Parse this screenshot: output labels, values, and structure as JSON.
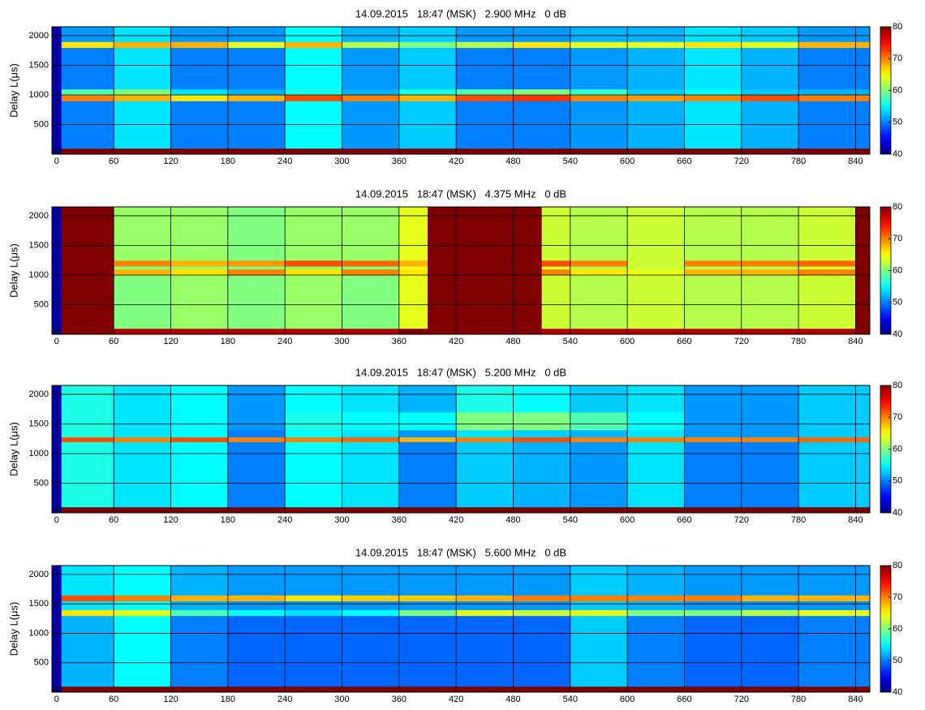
{
  "chart_data": [
    {
      "type": "heatmap",
      "title": "14.09.2015   18:47 (MSK)   2.900 MHz   0 dB",
      "ylabel": "Delay L(μs)",
      "colormap": "jet",
      "grid": true,
      "xlim": [
        -5,
        855
      ],
      "ylim": [
        0,
        2150
      ],
      "xticks": [
        0,
        60,
        120,
        180,
        240,
        300,
        360,
        420,
        480,
        540,
        600,
        660,
        720,
        780,
        840
      ],
      "yticks": [
        500,
        1000,
        1500,
        2000
      ],
      "clim": [
        40,
        80
      ],
      "cticks": [
        40,
        50,
        60,
        70,
        80
      ],
      "x_edges": [
        -5,
        5,
        60,
        120,
        180,
        240,
        300,
        360,
        420,
        480,
        540,
        600,
        660,
        720,
        780,
        855
      ],
      "y_edges": [
        0,
        100,
        900,
        1000,
        1100,
        1800,
        1900,
        2150
      ],
      "z": [
        [
          40,
          80,
          80,
          80,
          80,
          80,
          80,
          80,
          80,
          80,
          80,
          80,
          80,
          80,
          80
        ],
        [
          42,
          50,
          54,
          50,
          50,
          55,
          51,
          53,
          50,
          50,
          51,
          52,
          54,
          52,
          50
        ],
        [
          42,
          70,
          68,
          66,
          68,
          72,
          70,
          68,
          72,
          73,
          70,
          69,
          70,
          72,
          70
        ],
        [
          42,
          58,
          60,
          54,
          52,
          56,
          52,
          56,
          58,
          60,
          57,
          53,
          55,
          53,
          52
        ],
        [
          42,
          50,
          54,
          50,
          50,
          55,
          51,
          53,
          50,
          50,
          51,
          52,
          54,
          52,
          50
        ],
        [
          42,
          66,
          68,
          68,
          64,
          68,
          62,
          60,
          62,
          66,
          64,
          64,
          66,
          64,
          68
        ],
        [
          42,
          51,
          54,
          51,
          51,
          55,
          52,
          53,
          51,
          51,
          52,
          52,
          54,
          53,
          51
        ]
      ]
    },
    {
      "type": "heatmap",
      "title": "14.09.2015   18:47 (MSK)   4.375 MHz   0 dB",
      "ylabel": "Delay L(μs)",
      "colormap": "jet",
      "grid": true,
      "xlim": [
        -5,
        855
      ],
      "ylim": [
        0,
        2150
      ],
      "xticks": [
        0,
        60,
        120,
        180,
        240,
        300,
        360,
        420,
        480,
        540,
        600,
        660,
        720,
        780,
        840
      ],
      "yticks": [
        500,
        1000,
        1500,
        2000
      ],
      "clim": [
        40,
        80
      ],
      "cticks": [
        40,
        50,
        60,
        70,
        80
      ],
      "x_edges": [
        -5,
        5,
        60,
        120,
        180,
        240,
        300,
        360,
        390,
        510,
        540,
        600,
        660,
        720,
        780,
        840,
        855
      ],
      "y_edges": [
        0,
        100,
        1000,
        1100,
        1150,
        1250,
        2150
      ],
      "z": [
        [
          40,
          80,
          78,
          78,
          78,
          78,
          78,
          80,
          80,
          78,
          78,
          78,
          78,
          78,
          78,
          80
        ],
        [
          42,
          80,
          60,
          61,
          60,
          61,
          60,
          64,
          80,
          63,
          62,
          63,
          62,
          62,
          63,
          80
        ],
        [
          42,
          80,
          68,
          66,
          70,
          66,
          70,
          66,
          80,
          70,
          66,
          64,
          68,
          68,
          70,
          80
        ],
        [
          42,
          80,
          60,
          61,
          60,
          61,
          60,
          64,
          80,
          63,
          62,
          63,
          62,
          62,
          63,
          80
        ],
        [
          42,
          80,
          70,
          68,
          69,
          72,
          71,
          68,
          80,
          72,
          70,
          63,
          70,
          70,
          71,
          80
        ],
        [
          42,
          80,
          61,
          61,
          60,
          61,
          61,
          64,
          80,
          63,
          62,
          63,
          62,
          62,
          63,
          80
        ]
      ]
    },
    {
      "type": "heatmap",
      "title": "14.09.2015   18:47 (MSK)   5.200 MHz   0 dB",
      "ylabel": "Delay L(μs)",
      "colormap": "jet",
      "grid": true,
      "xlim": [
        -5,
        855
      ],
      "ylim": [
        0,
        2150
      ],
      "xticks": [
        0,
        60,
        120,
        180,
        240,
        300,
        360,
        420,
        480,
        540,
        600,
        660,
        720,
        780,
        840
      ],
      "yticks": [
        500,
        1000,
        1500,
        2000
      ],
      "clim": [
        40,
        80
      ],
      "cticks": [
        40,
        50,
        60,
        70,
        80
      ],
      "x_edges": [
        -5,
        5,
        60,
        120,
        180,
        240,
        300,
        360,
        420,
        480,
        540,
        600,
        660,
        720,
        780,
        855
      ],
      "y_edges": [
        0,
        100,
        1200,
        1280,
        1400,
        1700,
        2150
      ],
      "z": [
        [
          40,
          80,
          80,
          80,
          80,
          80,
          80,
          80,
          80,
          80,
          80,
          80,
          80,
          80,
          80
        ],
        [
          42,
          56,
          54,
          55,
          50,
          55,
          54,
          50,
          53,
          52,
          51,
          54,
          50,
          50,
          53
        ],
        [
          42,
          72,
          70,
          72,
          70,
          70,
          71,
          68,
          70,
          72,
          70,
          70,
          70,
          70,
          71
        ],
        [
          42,
          56,
          54,
          55,
          50,
          55,
          54,
          51,
          54,
          53,
          52,
          54,
          51,
          51,
          53
        ],
        [
          42,
          56,
          54,
          55,
          51,
          56,
          55,
          55,
          60,
          60,
          58,
          55,
          51,
          51,
          53
        ],
        [
          42,
          56,
          54,
          55,
          51,
          55,
          54,
          52,
          56,
          55,
          53,
          54,
          51,
          51,
          53
        ]
      ]
    },
    {
      "type": "heatmap",
      "title": "14.09.2015   18:47 (MSK)   5.600 MHz   0 dB",
      "ylabel": "Delay L(μs)",
      "colormap": "jet",
      "grid": true,
      "xlim": [
        -5,
        855
      ],
      "ylim": [
        0,
        2150
      ],
      "xticks": [
        0,
        60,
        120,
        180,
        240,
        300,
        360,
        420,
        480,
        540,
        600,
        660,
        720,
        780,
        840
      ],
      "yticks": [
        500,
        1000,
        1500,
        2000
      ],
      "clim": [
        40,
        80
      ],
      "cticks": [
        40,
        50,
        60,
        70,
        80
      ],
      "x_edges": [
        -5,
        5,
        60,
        120,
        180,
        240,
        300,
        360,
        420,
        480,
        540,
        600,
        660,
        720,
        780,
        855
      ],
      "y_edges": [
        0,
        100,
        1300,
        1400,
        1550,
        1650,
        2150
      ],
      "z": [
        [
          40,
          80,
          80,
          80,
          80,
          80,
          80,
          80,
          80,
          80,
          80,
          80,
          80,
          80,
          80
        ],
        [
          42,
          52,
          55,
          50,
          49,
          49,
          49,
          49,
          49,
          49,
          53,
          50,
          49,
          49,
          50
        ],
        [
          42,
          66,
          64,
          58,
          55,
          54,
          55,
          60,
          64,
          63,
          64,
          60,
          60,
          62,
          64
        ],
        [
          42,
          54,
          55,
          52,
          51,
          51,
          51,
          51,
          51,
          51,
          53,
          52,
          51,
          51,
          51
        ],
        [
          42,
          72,
          70,
          68,
          68,
          66,
          67,
          67,
          68,
          70,
          70,
          70,
          70,
          68,
          68
        ],
        [
          42,
          54,
          55,
          52,
          51,
          51,
          51,
          51,
          51,
          51,
          53,
          52,
          51,
          51,
          51
        ]
      ]
    }
  ]
}
